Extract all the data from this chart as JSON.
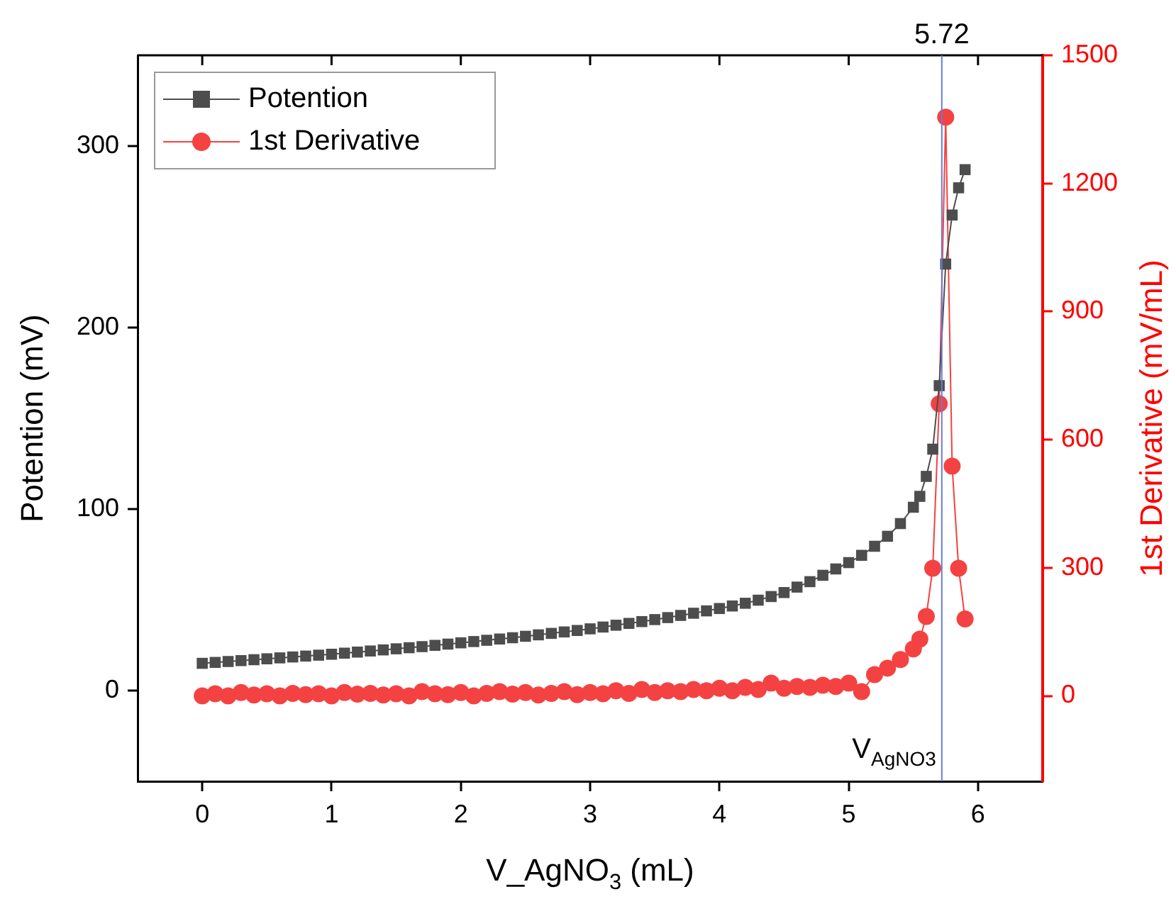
{
  "chart_data": {
    "type": "line",
    "xlabel": "V_AgNO$_{3}$ (mL)",
    "ylabel": "Potention (mV)",
    "y2label": "1st Derivative (mV/mL)",
    "x": [
      0,
      0.1,
      0.2,
      0.3,
      0.4,
      0.5,
      0.6,
      0.7,
      0.8,
      0.9,
      1.0,
      1.1,
      1.2,
      1.3,
      1.4,
      1.5,
      1.6,
      1.7,
      1.8,
      1.9,
      2.0,
      2.1,
      2.2,
      2.3,
      2.4,
      2.5,
      2.6,
      2.7,
      2.8,
      2.9,
      3.0,
      3.1,
      3.2,
      3.3,
      3.4,
      3.5,
      3.6,
      3.7,
      3.8,
      3.9,
      4.0,
      4.1,
      4.2,
      4.3,
      4.4,
      4.5,
      4.6,
      4.7,
      4.8,
      4.9,
      5.0,
      5.1,
      5.2,
      5.3,
      5.4,
      5.5,
      5.55,
      5.6,
      5.65,
      5.7,
      5.75,
      5.8,
      5.85,
      5.9
    ],
    "series": [
      {
        "name": "Potention",
        "color": "#4d4d4d",
        "marker": "square",
        "values": [
          15,
          15.5,
          16,
          16.5,
          17,
          17.5,
          18,
          18.5,
          19,
          19.5,
          20,
          20.6,
          21.2,
          21.8,
          22.4,
          23,
          23.6,
          24.2,
          24.9,
          25.6,
          26.3,
          27,
          27.7,
          28.4,
          29.1,
          29.9,
          30.7,
          31.5,
          32.3,
          33.1,
          34,
          35,
          36,
          37,
          38,
          39.1,
          40.2,
          41.4,
          42.6,
          43.9,
          45.2,
          46.6,
          48.1,
          49.8,
          51.8,
          54,
          57,
          60,
          63.5,
          67,
          70.5,
          74.5,
          79.5,
          85,
          92,
          101,
          107,
          118,
          133,
          168,
          235,
          262,
          277,
          287
        ]
      },
      {
        "name": "1st Derivative",
        "color": "#f44242",
        "marker": "circle",
        "axis": "y2",
        "values": [
          0,
          5,
          0,
          8,
          2,
          5,
          0,
          6,
          3,
          5,
          0,
          8,
          4,
          6,
          2,
          5,
          0,
          10,
          5,
          3,
          8,
          0,
          6,
          10,
          4,
          8,
          2,
          6,
          10,
          3,
          8,
          5,
          12,
          6,
          15,
          8,
          12,
          10,
          15,
          12,
          18,
          12,
          20,
          15,
          30,
          18,
          22,
          20,
          25,
          22,
          30,
          10,
          50,
          65,
          85,
          110,
          133,
          186,
          299,
          684,
          1355,
          538,
          299,
          180
        ]
      }
    ],
    "xlim": [
      -0.5,
      6.5
    ],
    "xticks": [
      0,
      1,
      2,
      3,
      4,
      5,
      6
    ],
    "ylim": [
      -50,
      350
    ],
    "yticks": [
      0,
      100,
      200,
      300
    ],
    "y2lim": [
      -200,
      1500
    ],
    "y2ticks": [
      0,
      300,
      600,
      900,
      1200,
      1500
    ],
    "ref_lines": [
      {
        "axis": "x",
        "value": 5.72,
        "label": "5.72",
        "color": "#6a7bd8"
      }
    ],
    "annotations": [
      "V$_{AgNO3}$"
    ],
    "legend": "top left",
    "grid": false
  }
}
